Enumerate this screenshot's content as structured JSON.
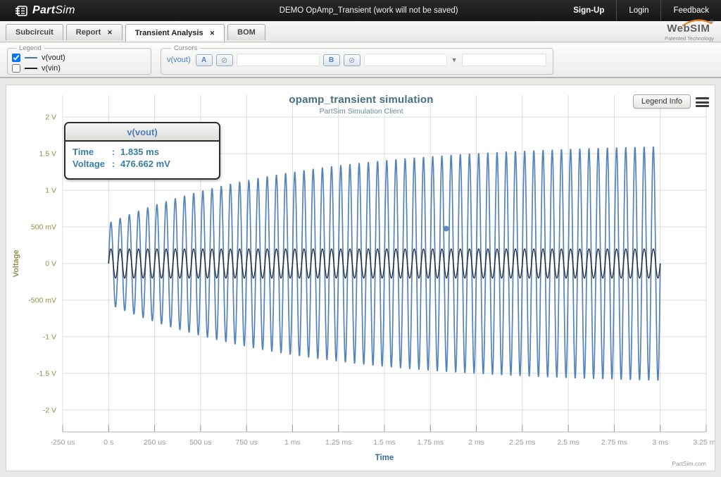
{
  "topbar": {
    "brand_part": "Part",
    "brand_sim": "Sim",
    "title": "DEMO OpAmp_Transient (work will not be saved)",
    "links": [
      {
        "label": "Sign-Up"
      },
      {
        "label": "Login"
      },
      {
        "label": "Feedback"
      }
    ]
  },
  "tabs": [
    {
      "label": "Subcircuit"
    },
    {
      "label": "Report",
      "close": "✕"
    },
    {
      "label": "Transient Analysis",
      "close": "✕"
    },
    {
      "label": "BOM"
    }
  ],
  "websim": {
    "name": "WebSIM",
    "reg": "®",
    "tagline": "Patented Technology"
  },
  "panels": {
    "legend": {
      "title": "Legend",
      "items": [
        {
          "label": "v(vout)",
          "checked": true,
          "color": "#4577b5"
        },
        {
          "label": "v(vin)",
          "checked": false,
          "color": "#222222"
        }
      ]
    },
    "cursors": {
      "title": "Cursors",
      "signal": "v(vout)",
      "button_a": "A",
      "button_b": "B",
      "clear_icon": "⊘",
      "dropdown_icon": "▼"
    }
  },
  "chart": {
    "legend_info_label": "Legend Info",
    "watermark": "PartSim.com",
    "tooltip": {
      "title": "v(vout)",
      "rows": [
        {
          "label": "Time",
          "sep": ":",
          "value": "1.835 ms"
        },
        {
          "label": "Voltage",
          "sep": ":",
          "value": "476.662 mV"
        }
      ]
    }
  },
  "chart_data": {
    "type": "line",
    "title": "opamp_transient simulation",
    "subtitle": "PartSim Simulation Client",
    "xlabel": "Time",
    "ylabel": "Voltage",
    "x_unit": "us",
    "xlim": [
      -250,
      3250
    ],
    "ylim": [
      -2.3,
      2.3
    ],
    "grid": true,
    "x_ticks": [
      "-250 us",
      "0 s",
      "250 us",
      "500 us",
      "750 us",
      "1 ms",
      "1.25 ms",
      "1.5 ms",
      "1.75 ms",
      "2 ms",
      "2.25 ms",
      "2.5 ms",
      "2.75 ms",
      "3 ms",
      "3.25 ms"
    ],
    "x_tick_values": [
      -250,
      0,
      250,
      500,
      750,
      1000,
      1250,
      1500,
      1750,
      2000,
      2250,
      2500,
      2750,
      3000,
      3250
    ],
    "y_ticks": [
      "2 V",
      "1.5 V",
      "1 V",
      "500 mV",
      "0 V",
      "-500 mV",
      "-1 V",
      "-1.5 V",
      "-2 V"
    ],
    "y_tick_values": [
      2,
      1.5,
      1,
      0.5,
      0,
      -0.5,
      -1,
      -1.5,
      -2
    ],
    "series": [
      {
        "name": "v(vout)",
        "color": "#4577b5",
        "stroke_width": 1.7,
        "signal": {
          "kind": "sine",
          "freq_hz": 20000,
          "t_start_us": 0,
          "t_end_us": 3000,
          "amp_start_v": 0.55,
          "amp_final_v": 1.65,
          "amp_tau_us": 1000
        }
      },
      {
        "name": "v(vin)",
        "color": "#1c1c1c",
        "stroke_width": 1.3,
        "signal": {
          "kind": "sine",
          "freq_hz": 20000,
          "t_start_us": 0,
          "t_end_us": 3000,
          "amp_start_v": 0.2,
          "amp_final_v": 0.2,
          "amp_tau_us": 1
        }
      }
    ],
    "cursor_point": {
      "series": "v(vout)",
      "time_us": 1835,
      "voltage_v": 0.476662,
      "color": "#4577b5"
    }
  }
}
